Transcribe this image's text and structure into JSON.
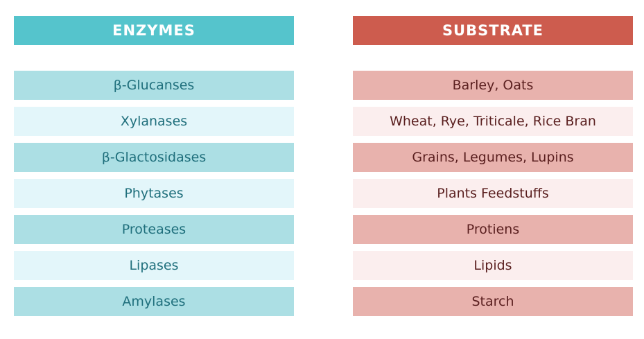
{
  "enzymes": {
    "header": "ENZYMES",
    "items": [
      "β-Glucanses",
      "Xylanases",
      "β-Glactosidases",
      "Phytases",
      "Proteases",
      "Lipases",
      "Amylases"
    ]
  },
  "substrate": {
    "header": "SUBSTRATE",
    "items": [
      "Barley, Oats",
      "Wheat, Rye, Triticale, Rice Bran",
      "Grains, Legumes, Lupins",
      "Plants Feedstuffs",
      "Protiens",
      "Lipids",
      "Starch"
    ]
  },
  "colors": {
    "enzymes_header": "#55c4cc",
    "enzymes_row_dark": "#acdfe4",
    "enzymes_row_light": "#e3f6fa",
    "substrate_header": "#cd5c4e",
    "substrate_row_dark": "#e8b2ad",
    "substrate_row_light": "#fbeeee"
  }
}
